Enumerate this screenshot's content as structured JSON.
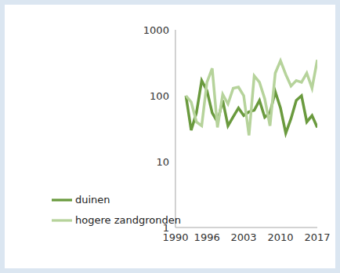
{
  "chart_data": {
    "type": "line",
    "log": "y",
    "grid": false,
    "legend": "lower left",
    "x": [
      1992,
      1993,
      1994,
      1995,
      1996,
      1997,
      1998,
      1999,
      2000,
      2001,
      2002,
      2003,
      2004,
      2005,
      2006,
      2007,
      2008,
      2009,
      2010,
      2011,
      2012,
      2013,
      2014,
      2015,
      2016,
      2017
    ],
    "xlim": [
      1990,
      2017
    ],
    "xticks": [
      1990,
      1996,
      2003,
      2010,
      2017
    ],
    "ylim": [
      1,
      1000
    ],
    "yticks": [
      1,
      10,
      100,
      1000
    ],
    "series": [
      {
        "name": "duinen",
        "color": "#6a9a3e",
        "values": [
          100,
          30,
          55,
          170,
          120,
          55,
          40,
          85,
          35,
          48,
          65,
          50,
          57,
          60,
          85,
          47,
          55,
          115,
          65,
          27,
          45,
          85,
          100,
          40,
          50,
          33
        ]
      },
      {
        "name": "hogere zandgronden",
        "color": "#b6d39b",
        "values": [
          100,
          80,
          40,
          35,
          160,
          260,
          33,
          105,
          75,
          130,
          135,
          100,
          25,
          200,
          160,
          90,
          35,
          220,
          340,
          210,
          140,
          170,
          160,
          220,
          130,
          350
        ]
      }
    ]
  }
}
